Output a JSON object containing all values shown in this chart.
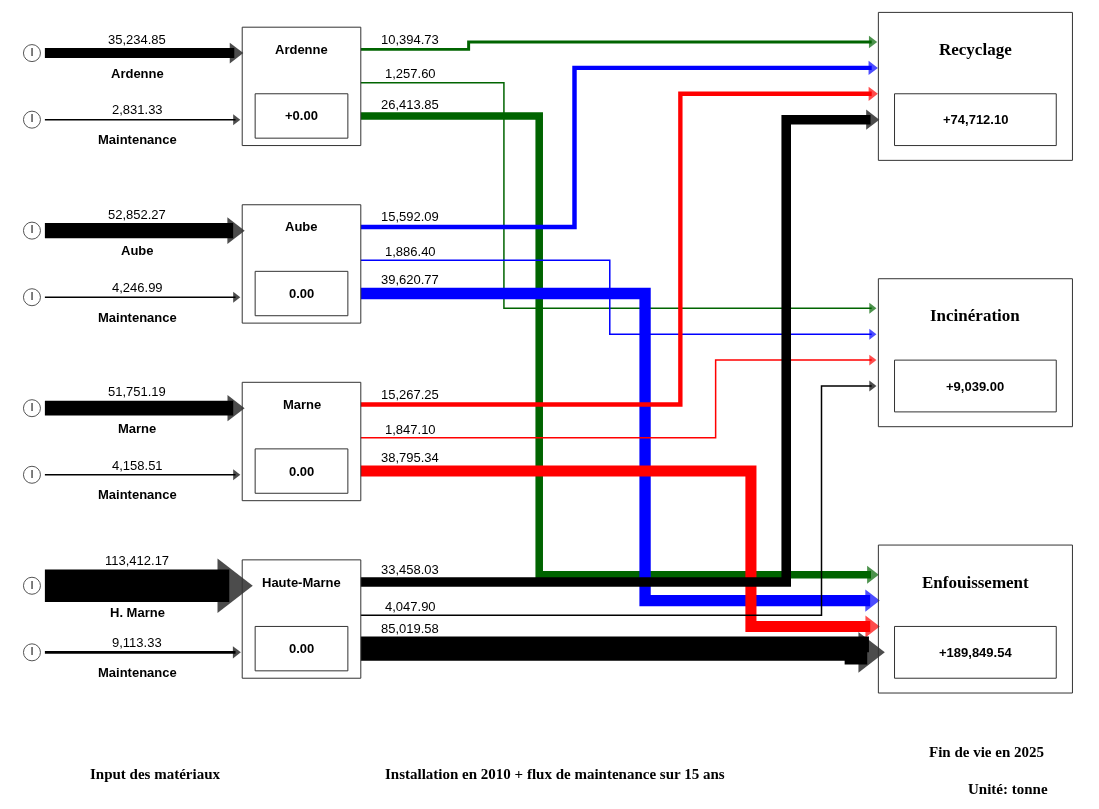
{
  "chart_data": {
    "type": "other",
    "categories": [
      "Ardenne",
      "Aube",
      "Marne",
      "Haute-Marne"
    ],
    "series": [
      {
        "color": "#000000",
        "values": [
          35234.85,
          52852.27,
          51751.19,
          113412.17
        ],
        "value_labels": [
          "35,234.85",
          "52,852.27",
          "51,751.19",
          "113,412.17"
        ]
      },
      {
        "name": "Maintenance",
        "color": "#000000",
        "values": [
          2831.33,
          4246.99,
          4158.51,
          9113.33
        ],
        "value_labels": [
          "2,831.33",
          "4,246.99",
          "4,158.51",
          "9,113.33"
        ]
      },
      {
        "name": "Recyclage",
        "colors": [
          "#006400",
          "#0000ff",
          "#ff0000",
          "#000000"
        ],
        "values": [
          10394.73,
          15592.09,
          15267.25,
          33458.03
        ],
        "value_labels": [
          "10,394.73",
          "15,592.09",
          "15,267.25",
          "33,458.03"
        ]
      },
      {
        "name": "Incinération",
        "colors": [
          "#006400",
          "#0000ff",
          "#ff0000",
          "#000000"
        ],
        "values": [
          1257.6,
          1886.4,
          1847.1,
          4047.9
        ],
        "value_labels": [
          "1,257.60",
          "1,886.40",
          "1,847.10",
          "4,047.90"
        ]
      },
      {
        "name": "Enfouissement",
        "colors": [
          "#006400",
          "#0000ff",
          "#ff0000",
          "#000000"
        ],
        "values": [
          26413.85,
          39620.77,
          38795.34,
          85019.58
        ],
        "value_labels": [
          "26,413.85",
          "39,620.77",
          "38,795.34",
          "85,019.58"
        ]
      }
    ],
    "totals": [
      "+74,712.10",
      "+9,039.00",
      "+189,849.54"
    ],
    "annotations": [
      {
        "text": "Ardenne",
        "x": "Ardenne"
      },
      {
        "text": "Aube",
        "x": "Aube"
      },
      {
        "text": "Marne",
        "x": "Marne"
      },
      {
        "text": "H. Marne",
        "x": "Haute-Marne"
      },
      "I",
      "+0.00",
      "0.00",
      "0.00",
      "0.00",
      "Input des matériaux",
      "Installation en 2010 + flux de maintenance sur 15 ans",
      "Fin de vie en 2025",
      "Unité: tonne"
    ]
  }
}
